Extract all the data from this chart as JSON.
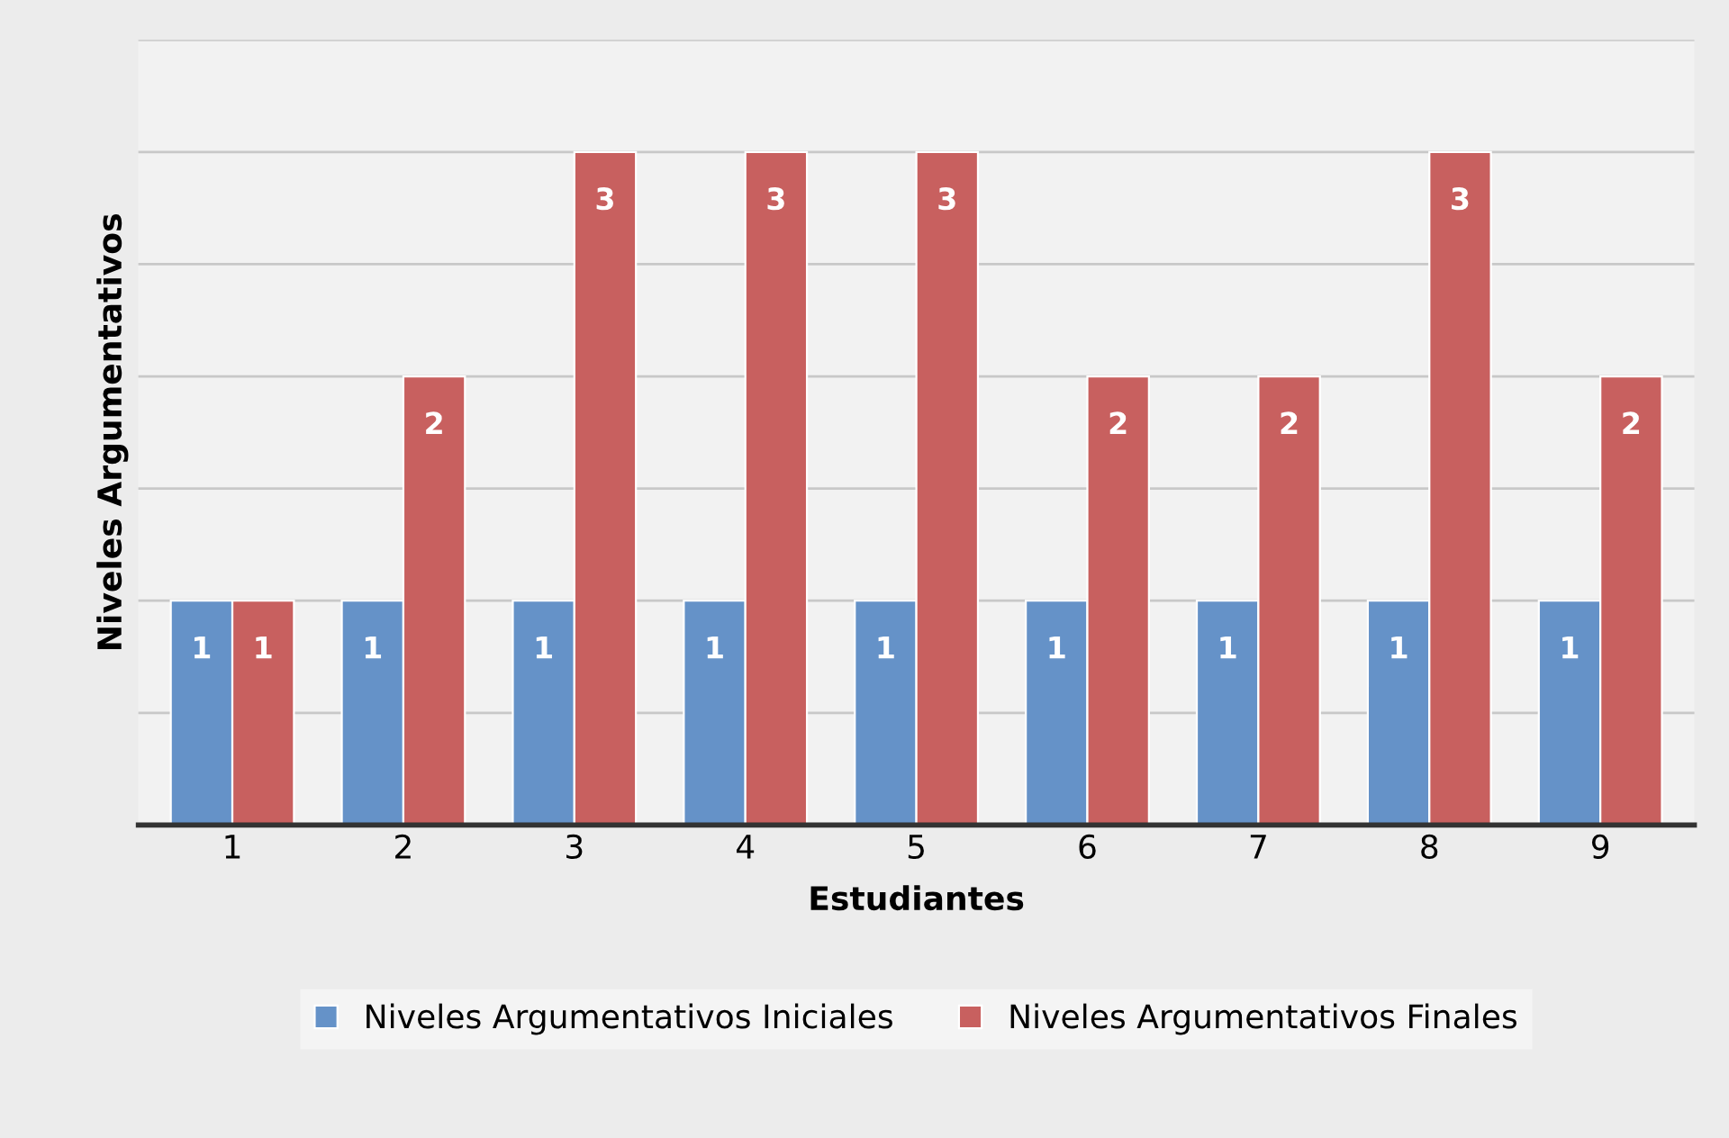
{
  "chart_data": {
    "type": "bar",
    "xlabel": "Estudiantes",
    "ylabel": "Niveles Argumentativos",
    "categories": [
      "1",
      "2",
      "3",
      "4",
      "5",
      "6",
      "7",
      "8",
      "9"
    ],
    "series": [
      {
        "name": "Niveles Argumentativos Iniciales",
        "color": "#6592c8",
        "values": [
          1,
          1,
          1,
          1,
          1,
          1,
          1,
          1,
          1
        ]
      },
      {
        "name": "Niveles Argumentativos Finales",
        "color": "#c8605f",
        "values": [
          1,
          2,
          3,
          3,
          3,
          2,
          2,
          3,
          2
        ]
      }
    ],
    "ylim": [
      0,
      3.5
    ],
    "yticks": [
      {
        "value": 0,
        "label": null
      },
      {
        "value": 0.5,
        "label": null
      },
      {
        "value": 1,
        "label": null
      },
      {
        "value": 1.5,
        "label": null
      },
      {
        "value": 2,
        "label": null
      },
      {
        "value": 2.5,
        "label": null
      },
      {
        "value": 3,
        "label": null
      },
      {
        "value": 3.5,
        "label": null
      }
    ],
    "tick_labels": "x",
    "grid": "y",
    "legend": "bottom",
    "data_labels": true
  }
}
